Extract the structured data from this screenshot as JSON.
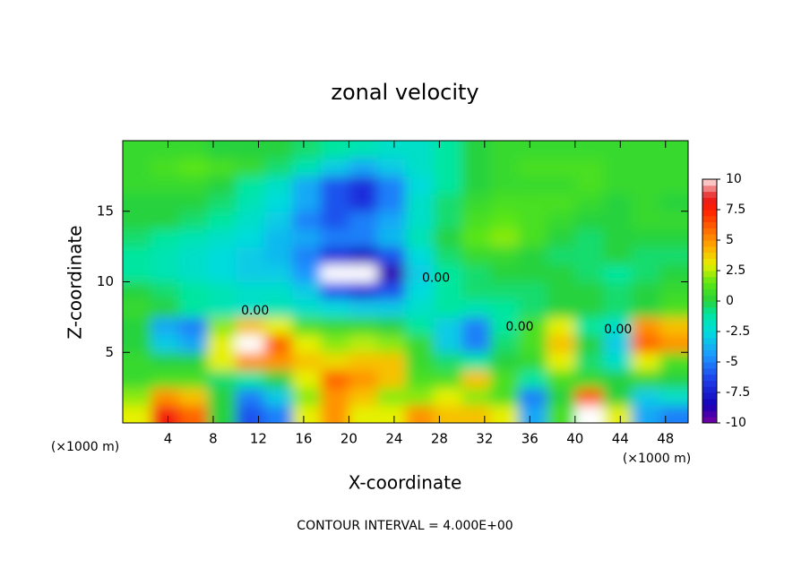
{
  "chart_data": {
    "type": "heatmap",
    "title": "zonal velocity",
    "x_label": "X-coordinate",
    "y_label": "Z-coordinate",
    "x_unit_label": "(×1000 m)",
    "footer": "CONTOUR INTERVAL = 4.000E+00",
    "xlim": [
      0,
      50
    ],
    "ylim": [
      0,
      20
    ],
    "xticks": [
      4,
      8,
      12,
      16,
      20,
      24,
      28,
      32,
      36,
      40,
      44,
      48
    ],
    "yticks": [
      5,
      10,
      15
    ],
    "clim": [
      -10,
      10
    ],
    "cbarticks": [
      10,
      7.5,
      5,
      2.5,
      0,
      -2.5,
      -5,
      -7.5,
      -10
    ],
    "out_of_range_color": "#ffffff",
    "colorscale": [
      [
        -10,
        "#7800a0"
      ],
      [
        -8.5,
        "#1400b8"
      ],
      [
        -6.5,
        "#1e3ce8"
      ],
      [
        -4.5,
        "#1e96ff"
      ],
      [
        -2.5,
        "#00dcdc"
      ],
      [
        -1,
        "#00e6a0"
      ],
      [
        0,
        "#28d23c"
      ],
      [
        1.5,
        "#5ae614"
      ],
      [
        3,
        "#e6f000"
      ],
      [
        4.5,
        "#ffaa00"
      ],
      [
        6,
        "#ff6400"
      ],
      [
        7.5,
        "#ff1e00"
      ],
      [
        8.5,
        "#e61e1e"
      ],
      [
        9.5,
        "#f5a0a0"
      ],
      [
        10,
        "#ffe8e8"
      ]
    ],
    "x": [
      1.25,
      3.75,
      6.25,
      8.75,
      11.25,
      13.75,
      16.25,
      18.75,
      21.25,
      23.75,
      26.25,
      28.75,
      31.25,
      33.75,
      36.25,
      38.75,
      41.25,
      43.75,
      46.25,
      48.75
    ],
    "y": [
      0.625,
      1.875,
      3.125,
      4.375,
      5.625,
      6.875,
      8.125,
      9.375,
      10.625,
      11.875,
      13.125,
      14.375,
      15.625,
      16.875,
      18.125,
      19.375
    ],
    "z": [
      [
        3,
        8,
        6,
        0,
        -6,
        -5,
        3,
        5,
        3,
        3,
        5,
        4,
        4,
        3,
        -4,
        1,
        11,
        3,
        -4,
        -5
      ],
      [
        2,
        5,
        4,
        0,
        -5,
        -3,
        2,
        5,
        4,
        2,
        2,
        3,
        2,
        1,
        -5,
        0,
        6,
        0,
        -3,
        -2
      ],
      [
        0.5,
        1,
        1,
        -0.5,
        -1,
        0,
        3,
        6,
        5,
        4,
        1,
        1,
        4,
        1,
        -1,
        1,
        0.5,
        0,
        0.5,
        0
      ],
      [
        0.5,
        0,
        0,
        3,
        5,
        5,
        4,
        3.5,
        4,
        4,
        0.5,
        -0.5,
        -1,
        0,
        0.5,
        3,
        -0.5,
        -2,
        3,
        1
      ],
      [
        0,
        -3,
        -4,
        3,
        11,
        6,
        3,
        2,
        2.5,
        2,
        0.5,
        -3,
        -5,
        -0.5,
        1,
        4,
        0,
        -3,
        6,
        5
      ],
      [
        0,
        -4,
        -5,
        2,
        4,
        3,
        1,
        0.5,
        0.5,
        0,
        -1,
        -3,
        -5,
        -1,
        1,
        3,
        -1,
        -2,
        5,
        4
      ],
      [
        0.5,
        0,
        -1,
        -1.5,
        -2,
        -1.5,
        -2,
        -2.5,
        -3,
        -3,
        -2,
        -1,
        -1.5,
        -1,
        -0.5,
        0,
        0,
        -0.5,
        0,
        1
      ],
      [
        0,
        -0.5,
        -1,
        -1.5,
        -2,
        -2,
        -3,
        -6,
        -7,
        -6,
        -2.5,
        -1,
        -0.5,
        -0.5,
        -0.5,
        0,
        0,
        -0.5,
        0,
        0.5
      ],
      [
        -1,
        -1.5,
        -2,
        -2.5,
        -3,
        -3,
        -4.5,
        -12,
        -12,
        -9,
        -3,
        -1,
        -0.5,
        0,
        0,
        0,
        -0.5,
        -1,
        -0.5,
        0
      ],
      [
        -1,
        -1.5,
        -2,
        -2.5,
        -3,
        -3.5,
        -5,
        -7,
        -8,
        -6,
        -2.5,
        -0.5,
        0.5,
        0.5,
        0,
        -0.5,
        -0.5,
        0,
        -0.5,
        -0.5
      ],
      [
        -0.5,
        -1,
        -1.5,
        -2,
        -2.5,
        -3.5,
        -4,
        -5,
        -5,
        -3.5,
        -1.5,
        0,
        1.5,
        2,
        1,
        0,
        -0.5,
        0,
        0,
        0
      ],
      [
        0,
        0,
        -0.5,
        -1,
        -2,
        -3,
        -5,
        -6,
        -5,
        -4,
        -2,
        -0.5,
        1,
        1.5,
        1,
        0.5,
        0,
        0,
        0.5,
        0.5
      ],
      [
        0,
        0,
        0,
        -0.5,
        -1.5,
        -2.5,
        -4,
        -6,
        -7,
        -5,
        -2,
        -0.5,
        0.5,
        1,
        1,
        1,
        0.5,
        0,
        0.5,
        0
      ],
      [
        0.5,
        0.5,
        0.5,
        0,
        -1,
        -2,
        -4,
        -6,
        -7,
        -5,
        -2.5,
        -1,
        0,
        0.5,
        0.5,
        0.5,
        1,
        0.5,
        0.5,
        0.5
      ],
      [
        0.5,
        1,
        1.5,
        1,
        0.5,
        -0.5,
        -1.5,
        -3,
        -4,
        -3,
        -2,
        -1,
        0,
        0.5,
        1,
        1,
        1,
        0.5,
        0.5,
        0.5
      ],
      [
        0.5,
        0.5,
        0.5,
        0,
        0,
        0,
        -0.5,
        -1,
        -1.5,
        -2,
        -2,
        -1,
        0,
        0.5,
        0.5,
        0.5,
        0.5,
        0.5,
        0.5,
        0.5
      ]
    ],
    "annotations": [
      {
        "text": "0.00",
        "x": 11.7,
        "y": 7.95
      },
      {
        "text": "0.00",
        "x": 27.7,
        "y": 10.25
      },
      {
        "text": "0.00",
        "x": 35.1,
        "y": 6.8
      },
      {
        "text": "0.00",
        "x": 43.8,
        "y": 6.6
      }
    ]
  }
}
